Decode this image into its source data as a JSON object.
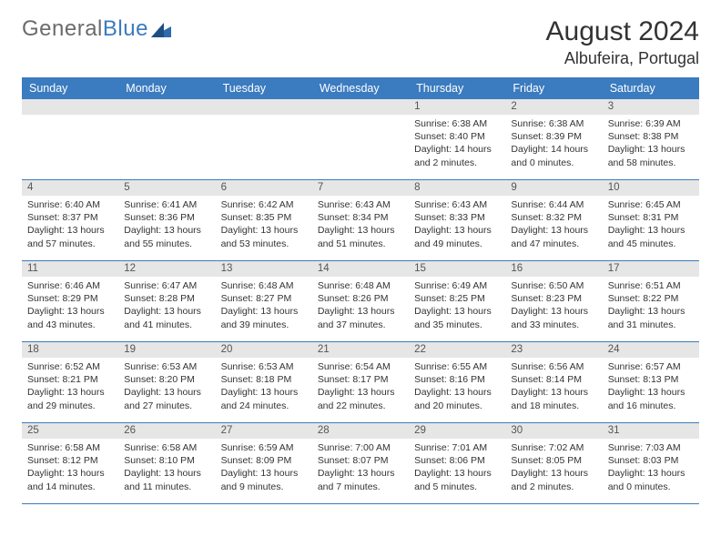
{
  "logo": {
    "part1": "General",
    "part2": "Blue",
    "icon_color": "#2f6aad"
  },
  "title": {
    "month": "August 2024",
    "location": "Albufeira, Portugal"
  },
  "colors": {
    "header_bg": "#3b7bbf",
    "daynum_bg": "#e6e6e6",
    "border": "#3b7bbf",
    "text": "#333333"
  },
  "day_names": [
    "Sunday",
    "Monday",
    "Tuesday",
    "Wednesday",
    "Thursday",
    "Friday",
    "Saturday"
  ],
  "weeks": [
    [
      {
        "day": "",
        "sunrise": "",
        "sunset": "",
        "daylight1": "",
        "daylight2": ""
      },
      {
        "day": "",
        "sunrise": "",
        "sunset": "",
        "daylight1": "",
        "daylight2": ""
      },
      {
        "day": "",
        "sunrise": "",
        "sunset": "",
        "daylight1": "",
        "daylight2": ""
      },
      {
        "day": "",
        "sunrise": "",
        "sunset": "",
        "daylight1": "",
        "daylight2": ""
      },
      {
        "day": "1",
        "sunrise": "Sunrise: 6:38 AM",
        "sunset": "Sunset: 8:40 PM",
        "daylight1": "Daylight: 14 hours",
        "daylight2": "and 2 minutes."
      },
      {
        "day": "2",
        "sunrise": "Sunrise: 6:38 AM",
        "sunset": "Sunset: 8:39 PM",
        "daylight1": "Daylight: 14 hours",
        "daylight2": "and 0 minutes."
      },
      {
        "day": "3",
        "sunrise": "Sunrise: 6:39 AM",
        "sunset": "Sunset: 8:38 PM",
        "daylight1": "Daylight: 13 hours",
        "daylight2": "and 58 minutes."
      }
    ],
    [
      {
        "day": "4",
        "sunrise": "Sunrise: 6:40 AM",
        "sunset": "Sunset: 8:37 PM",
        "daylight1": "Daylight: 13 hours",
        "daylight2": "and 57 minutes."
      },
      {
        "day": "5",
        "sunrise": "Sunrise: 6:41 AM",
        "sunset": "Sunset: 8:36 PM",
        "daylight1": "Daylight: 13 hours",
        "daylight2": "and 55 minutes."
      },
      {
        "day": "6",
        "sunrise": "Sunrise: 6:42 AM",
        "sunset": "Sunset: 8:35 PM",
        "daylight1": "Daylight: 13 hours",
        "daylight2": "and 53 minutes."
      },
      {
        "day": "7",
        "sunrise": "Sunrise: 6:43 AM",
        "sunset": "Sunset: 8:34 PM",
        "daylight1": "Daylight: 13 hours",
        "daylight2": "and 51 minutes."
      },
      {
        "day": "8",
        "sunrise": "Sunrise: 6:43 AM",
        "sunset": "Sunset: 8:33 PM",
        "daylight1": "Daylight: 13 hours",
        "daylight2": "and 49 minutes."
      },
      {
        "day": "9",
        "sunrise": "Sunrise: 6:44 AM",
        "sunset": "Sunset: 8:32 PM",
        "daylight1": "Daylight: 13 hours",
        "daylight2": "and 47 minutes."
      },
      {
        "day": "10",
        "sunrise": "Sunrise: 6:45 AM",
        "sunset": "Sunset: 8:31 PM",
        "daylight1": "Daylight: 13 hours",
        "daylight2": "and 45 minutes."
      }
    ],
    [
      {
        "day": "11",
        "sunrise": "Sunrise: 6:46 AM",
        "sunset": "Sunset: 8:29 PM",
        "daylight1": "Daylight: 13 hours",
        "daylight2": "and 43 minutes."
      },
      {
        "day": "12",
        "sunrise": "Sunrise: 6:47 AM",
        "sunset": "Sunset: 8:28 PM",
        "daylight1": "Daylight: 13 hours",
        "daylight2": "and 41 minutes."
      },
      {
        "day": "13",
        "sunrise": "Sunrise: 6:48 AM",
        "sunset": "Sunset: 8:27 PM",
        "daylight1": "Daylight: 13 hours",
        "daylight2": "and 39 minutes."
      },
      {
        "day": "14",
        "sunrise": "Sunrise: 6:48 AM",
        "sunset": "Sunset: 8:26 PM",
        "daylight1": "Daylight: 13 hours",
        "daylight2": "and 37 minutes."
      },
      {
        "day": "15",
        "sunrise": "Sunrise: 6:49 AM",
        "sunset": "Sunset: 8:25 PM",
        "daylight1": "Daylight: 13 hours",
        "daylight2": "and 35 minutes."
      },
      {
        "day": "16",
        "sunrise": "Sunrise: 6:50 AM",
        "sunset": "Sunset: 8:23 PM",
        "daylight1": "Daylight: 13 hours",
        "daylight2": "and 33 minutes."
      },
      {
        "day": "17",
        "sunrise": "Sunrise: 6:51 AM",
        "sunset": "Sunset: 8:22 PM",
        "daylight1": "Daylight: 13 hours",
        "daylight2": "and 31 minutes."
      }
    ],
    [
      {
        "day": "18",
        "sunrise": "Sunrise: 6:52 AM",
        "sunset": "Sunset: 8:21 PM",
        "daylight1": "Daylight: 13 hours",
        "daylight2": "and 29 minutes."
      },
      {
        "day": "19",
        "sunrise": "Sunrise: 6:53 AM",
        "sunset": "Sunset: 8:20 PM",
        "daylight1": "Daylight: 13 hours",
        "daylight2": "and 27 minutes."
      },
      {
        "day": "20",
        "sunrise": "Sunrise: 6:53 AM",
        "sunset": "Sunset: 8:18 PM",
        "daylight1": "Daylight: 13 hours",
        "daylight2": "and 24 minutes."
      },
      {
        "day": "21",
        "sunrise": "Sunrise: 6:54 AM",
        "sunset": "Sunset: 8:17 PM",
        "daylight1": "Daylight: 13 hours",
        "daylight2": "and 22 minutes."
      },
      {
        "day": "22",
        "sunrise": "Sunrise: 6:55 AM",
        "sunset": "Sunset: 8:16 PM",
        "daylight1": "Daylight: 13 hours",
        "daylight2": "and 20 minutes."
      },
      {
        "day": "23",
        "sunrise": "Sunrise: 6:56 AM",
        "sunset": "Sunset: 8:14 PM",
        "daylight1": "Daylight: 13 hours",
        "daylight2": "and 18 minutes."
      },
      {
        "day": "24",
        "sunrise": "Sunrise: 6:57 AM",
        "sunset": "Sunset: 8:13 PM",
        "daylight1": "Daylight: 13 hours",
        "daylight2": "and 16 minutes."
      }
    ],
    [
      {
        "day": "25",
        "sunrise": "Sunrise: 6:58 AM",
        "sunset": "Sunset: 8:12 PM",
        "daylight1": "Daylight: 13 hours",
        "daylight2": "and 14 minutes."
      },
      {
        "day": "26",
        "sunrise": "Sunrise: 6:58 AM",
        "sunset": "Sunset: 8:10 PM",
        "daylight1": "Daylight: 13 hours",
        "daylight2": "and 11 minutes."
      },
      {
        "day": "27",
        "sunrise": "Sunrise: 6:59 AM",
        "sunset": "Sunset: 8:09 PM",
        "daylight1": "Daylight: 13 hours",
        "daylight2": "and 9 minutes."
      },
      {
        "day": "28",
        "sunrise": "Sunrise: 7:00 AM",
        "sunset": "Sunset: 8:07 PM",
        "daylight1": "Daylight: 13 hours",
        "daylight2": "and 7 minutes."
      },
      {
        "day": "29",
        "sunrise": "Sunrise: 7:01 AM",
        "sunset": "Sunset: 8:06 PM",
        "daylight1": "Daylight: 13 hours",
        "daylight2": "and 5 minutes."
      },
      {
        "day": "30",
        "sunrise": "Sunrise: 7:02 AM",
        "sunset": "Sunset: 8:05 PM",
        "daylight1": "Daylight: 13 hours",
        "daylight2": "and 2 minutes."
      },
      {
        "day": "31",
        "sunrise": "Sunrise: 7:03 AM",
        "sunset": "Sunset: 8:03 PM",
        "daylight1": "Daylight: 13 hours",
        "daylight2": "and 0 minutes."
      }
    ]
  ]
}
